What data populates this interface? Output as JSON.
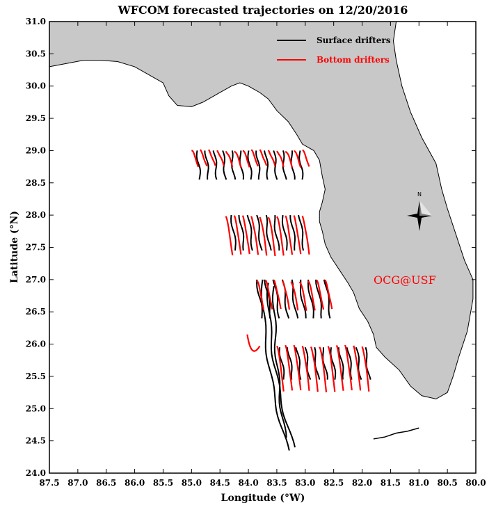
{
  "figure": {
    "title": "WFCOM forecasted trajectories on 12/20/2016",
    "xlabel": "Longitude (°W)",
    "ylabel": "Latitude (°N)",
    "watermark": "OCG@USF",
    "compass_label": "N"
  },
  "colors": {
    "land": "#c8c8c8",
    "coast": "#000000",
    "surface": "#000000",
    "bottom": "#ff0000",
    "watermark": "#ff0000"
  },
  "legend": {
    "position": "top-right",
    "entries": [
      {
        "label": "Surface drifters",
        "color": "#000000"
      },
      {
        "label": "Bottom drifters",
        "color": "#ff0000"
      }
    ]
  },
  "axes": {
    "xlim": [
      87.5,
      80.0
    ],
    "ylim": [
      24.0,
      31.0
    ],
    "xticks": [
      "87.5",
      "87.0",
      "86.5",
      "86.0",
      "85.5",
      "85.0",
      "84.5",
      "84.0",
      "83.5",
      "83.0",
      "82.5",
      "82.0",
      "81.5",
      "81.0",
      "80.5",
      "80.0"
    ],
    "yticks": [
      "24.0",
      "24.5",
      "25.0",
      "25.5",
      "26.0",
      "26.5",
      "27.0",
      "27.5",
      "28.0",
      "28.5",
      "29.0",
      "29.5",
      "30.0",
      "30.5",
      "31.0"
    ]
  },
  "map_data": {
    "coastline": [
      [
        87.5,
        30.3
      ],
      [
        87.2,
        30.35
      ],
      [
        86.9,
        30.4
      ],
      [
        86.6,
        30.4
      ],
      [
        86.3,
        30.38
      ],
      [
        86.0,
        30.3
      ],
      [
        85.7,
        30.15
      ],
      [
        85.5,
        30.05
      ],
      [
        85.4,
        29.85
      ],
      [
        85.25,
        29.7
      ],
      [
        85.0,
        29.68
      ],
      [
        84.8,
        29.75
      ],
      [
        84.5,
        29.9
      ],
      [
        84.3,
        30.0
      ],
      [
        84.15,
        30.05
      ],
      [
        84.0,
        30.0
      ],
      [
        83.8,
        29.9
      ],
      [
        83.65,
        29.8
      ],
      [
        83.5,
        29.62
      ],
      [
        83.3,
        29.45
      ],
      [
        83.15,
        29.25
      ],
      [
        83.05,
        29.1
      ],
      [
        82.85,
        29.0
      ],
      [
        82.75,
        28.85
      ],
      [
        82.7,
        28.6
      ],
      [
        82.65,
        28.4
      ],
      [
        82.7,
        28.2
      ],
      [
        82.75,
        28.05
      ],
      [
        82.75,
        27.9
      ],
      [
        82.7,
        27.75
      ],
      [
        82.65,
        27.55
      ],
      [
        82.55,
        27.35
      ],
      [
        82.4,
        27.15
      ],
      [
        82.25,
        26.95
      ],
      [
        82.15,
        26.8
      ],
      [
        82.05,
        26.55
      ],
      [
        81.9,
        26.35
      ],
      [
        81.8,
        26.15
      ],
      [
        81.75,
        25.95
      ],
      [
        81.6,
        25.8
      ],
      [
        81.35,
        25.6
      ],
      [
        81.15,
        25.35
      ],
      [
        80.95,
        25.2
      ],
      [
        80.7,
        25.15
      ],
      [
        80.5,
        25.25
      ],
      [
        80.4,
        25.5
      ],
      [
        80.3,
        25.8
      ],
      [
        80.15,
        26.2
      ],
      [
        80.05,
        26.7
      ],
      [
        80.05,
        27.0
      ],
      [
        80.2,
        27.3
      ],
      [
        80.35,
        27.7
      ],
      [
        80.5,
        28.1
      ],
      [
        80.6,
        28.4
      ],
      [
        80.7,
        28.8
      ],
      [
        80.95,
        29.2
      ],
      [
        81.15,
        29.6
      ],
      [
        81.3,
        30.0
      ],
      [
        81.4,
        30.4
      ],
      [
        81.45,
        30.7
      ],
      [
        81.4,
        31.0
      ]
    ],
    "keys": [
      [
        81.0,
        24.7
      ],
      [
        81.2,
        24.65
      ],
      [
        81.4,
        24.62
      ],
      [
        81.6,
        24.56
      ],
      [
        81.8,
        24.53
      ]
    ],
    "surface_drifters": [
      {
        "name": "row1",
        "lon": [
          84.9,
          84.75,
          84.6,
          84.45,
          84.3,
          84.15,
          84.0,
          83.85,
          83.7,
          83.55,
          83.4,
          83.25,
          83.1
        ],
        "lat0": 29.0,
        "len": 0.45,
        "drift": 0.05
      },
      {
        "name": "row2",
        "lon": [
          84.3,
          84.15,
          84.0,
          83.85,
          83.7,
          83.55,
          83.4,
          83.25,
          83.1
        ],
        "lat0": 28.0,
        "len": 0.55,
        "drift": 0.08
      },
      {
        "name": "row3",
        "lon": [
          83.85,
          83.7,
          83.55,
          83.4,
          83.25,
          83.1,
          82.95,
          82.8,
          82.65
        ],
        "lat0": 27.0,
        "len": 0.6,
        "drift": 0.1
      },
      {
        "name": "row4",
        "lon": [
          83.45,
          83.3,
          83.15,
          83.0,
          82.85,
          82.7,
          82.55,
          82.4,
          82.25,
          82.1,
          81.95
        ],
        "lat0": 25.95,
        "len": 0.5,
        "drift": 0.08
      }
    ],
    "long_tracks": [
      {
        "lon0": 83.75,
        "lat0": 27.0,
        "lon1": 83.3,
        "lat1": 24.35
      },
      {
        "lon0": 83.65,
        "lat0": 26.95,
        "lon1": 83.2,
        "lat1": 24.4
      },
      {
        "lon0": 83.55,
        "lat0": 26.9,
        "lon1": 83.35,
        "lat1": 24.55
      }
    ],
    "bottom_drifters": [
      {
        "name": "row1",
        "lon": [
          85.0,
          84.85,
          84.7,
          84.55,
          84.4,
          84.25,
          84.1,
          83.95,
          83.8,
          83.65,
          83.5,
          83.35,
          83.2,
          83.05
        ],
        "lat0": 29.0,
        "len": 0.25
      },
      {
        "name": "row2",
        "lon": [
          84.4,
          84.25,
          84.1,
          83.95,
          83.8,
          83.65,
          83.5,
          83.35,
          83.2,
          83.05
        ],
        "lat0": 27.98,
        "len": 0.6
      },
      {
        "name": "row3",
        "lon": [
          83.85,
          83.7,
          83.55,
          83.4,
          83.25,
          83.1,
          82.95,
          82.8,
          82.65
        ],
        "lat0": 26.98,
        "len": 0.45
      },
      {
        "name": "row4",
        "lon": [
          83.5,
          83.35,
          83.2,
          83.05,
          82.9,
          82.75,
          82.6,
          82.45,
          82.3,
          82.15,
          82.0
        ],
        "lat0": 25.97,
        "len": 0.7
      }
    ]
  }
}
